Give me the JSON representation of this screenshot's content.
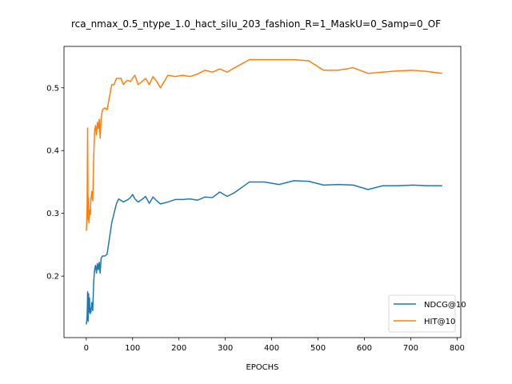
{
  "chart_data": {
    "type": "line",
    "title": "rca_nmax_0.5_ntype_1.0_hact_silu_203_fashion_R=1_MaskU=0_Samp=0_OF",
    "xlabel": "EPOCHS",
    "ylabel": "",
    "xlim": [
      -48,
      808
    ],
    "ylim": [
      0.102,
      0.566
    ],
    "xticks": [
      0,
      100,
      200,
      300,
      400,
      500,
      600,
      700,
      800
    ],
    "yticks": [
      0.2,
      0.3,
      0.4,
      0.5
    ],
    "xtick_labels": [
      "0",
      "100",
      "200",
      "300",
      "400",
      "500",
      "600",
      "700",
      "800"
    ],
    "ytick_labels": [
      "0.2",
      "0.3",
      "0.4",
      "0.5"
    ],
    "grid": false,
    "legend_position": "lower-right",
    "series": [
      {
        "name": "NDCG@10",
        "color": "#1f77b4",
        "x": [
          0,
          1,
          2,
          3,
          4,
          5,
          6,
          7,
          8,
          9,
          10,
          12,
          14,
          16,
          18,
          20,
          22,
          24,
          26,
          28,
          30,
          32,
          35,
          40,
          45,
          50,
          55,
          60,
          65,
          70,
          80,
          90,
          95,
          100,
          105,
          112,
          120,
          128,
          136,
          144,
          152,
          160,
          176,
          192,
          208,
          224,
          240,
          256,
          272,
          288,
          304,
          320,
          352,
          384,
          416,
          448,
          480,
          512,
          544,
          576,
          608,
          640,
          672,
          704,
          736,
          768
        ],
        "y": [
          0.123,
          0.128,
          0.138,
          0.175,
          0.128,
          0.172,
          0.143,
          0.165,
          0.14,
          0.148,
          0.142,
          0.158,
          0.145,
          0.19,
          0.21,
          0.217,
          0.205,
          0.22,
          0.21,
          0.222,
          0.205,
          0.228,
          0.232,
          0.232,
          0.235,
          0.26,
          0.285,
          0.3,
          0.315,
          0.323,
          0.318,
          0.322,
          0.325,
          0.33,
          0.323,
          0.318,
          0.322,
          0.327,
          0.316,
          0.326,
          0.32,
          0.315,
          0.318,
          0.322,
          0.322,
          0.323,
          0.321,
          0.326,
          0.325,
          0.334,
          0.327,
          0.333,
          0.35,
          0.35,
          0.346,
          0.352,
          0.351,
          0.345,
          0.346,
          0.345,
          0.338,
          0.344,
          0.344,
          0.345,
          0.344,
          0.344
        ]
      },
      {
        "name": "HIT@10",
        "color": "#ff7f0e",
        "x": [
          0,
          1,
          2,
          3,
          4,
          5,
          6,
          7,
          8,
          9,
          10,
          12,
          14,
          16,
          18,
          20,
          22,
          24,
          26,
          28,
          30,
          32,
          35,
          40,
          45,
          50,
          55,
          60,
          65,
          70,
          75,
          80,
          85,
          90,
          95,
          100,
          105,
          112,
          120,
          128,
          136,
          144,
          152,
          160,
          176,
          192,
          208,
          224,
          240,
          256,
          272,
          288,
          304,
          320,
          352,
          384,
          416,
          448,
          480,
          512,
          544,
          576,
          608,
          640,
          672,
          704,
          736,
          768
        ],
        "y": [
          0.272,
          0.285,
          0.315,
          0.436,
          0.29,
          0.325,
          0.285,
          0.3,
          0.305,
          0.298,
          0.32,
          0.335,
          0.32,
          0.385,
          0.43,
          0.44,
          0.425,
          0.445,
          0.435,
          0.45,
          0.42,
          0.45,
          0.465,
          0.468,
          0.465,
          0.485,
          0.505,
          0.505,
          0.515,
          0.515,
          0.515,
          0.505,
          0.51,
          0.512,
          0.51,
          0.515,
          0.52,
          0.505,
          0.51,
          0.515,
          0.505,
          0.518,
          0.51,
          0.5,
          0.52,
          0.518,
          0.52,
          0.518,
          0.522,
          0.528,
          0.525,
          0.53,
          0.525,
          0.532,
          0.545,
          0.545,
          0.545,
          0.545,
          0.543,
          0.528,
          0.528,
          0.532,
          0.523,
          0.525,
          0.527,
          0.528,
          0.526,
          0.523
        ]
      }
    ]
  }
}
